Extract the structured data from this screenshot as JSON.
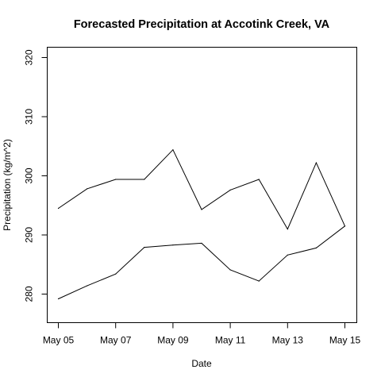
{
  "chart_data": {
    "type": "line",
    "title": "Forecasted Precipitation at Accotink Creek, VA",
    "xlabel": "Date",
    "ylabel": "Precipitation (kg/m^2)",
    "x": [
      "May 05",
      "May 06",
      "May 07",
      "May 08",
      "May 09",
      "May 10",
      "May 11",
      "May 12",
      "May 13",
      "May 14",
      "May 15"
    ],
    "x_tick_labels": [
      "May 05",
      "May 07",
      "May 09",
      "May 11",
      "May 13",
      "May 15"
    ],
    "y_ticks": [
      280,
      290,
      300,
      310,
      320
    ],
    "ylim": [
      274,
      322
    ],
    "grid": false,
    "series": [
      {
        "values": [
          294.5,
          297.8,
          299.4,
          299.4,
          304.4,
          294.3,
          297.6,
          299.4,
          291.0,
          302.2,
          291.5
        ],
        "color": "#000000"
      },
      {
        "values": [
          279.2,
          281.4,
          283.4,
          287.9,
          288.3,
          288.6,
          284.1,
          282.2,
          286.6,
          287.8,
          291.5
        ],
        "color": "#000000"
      }
    ]
  }
}
